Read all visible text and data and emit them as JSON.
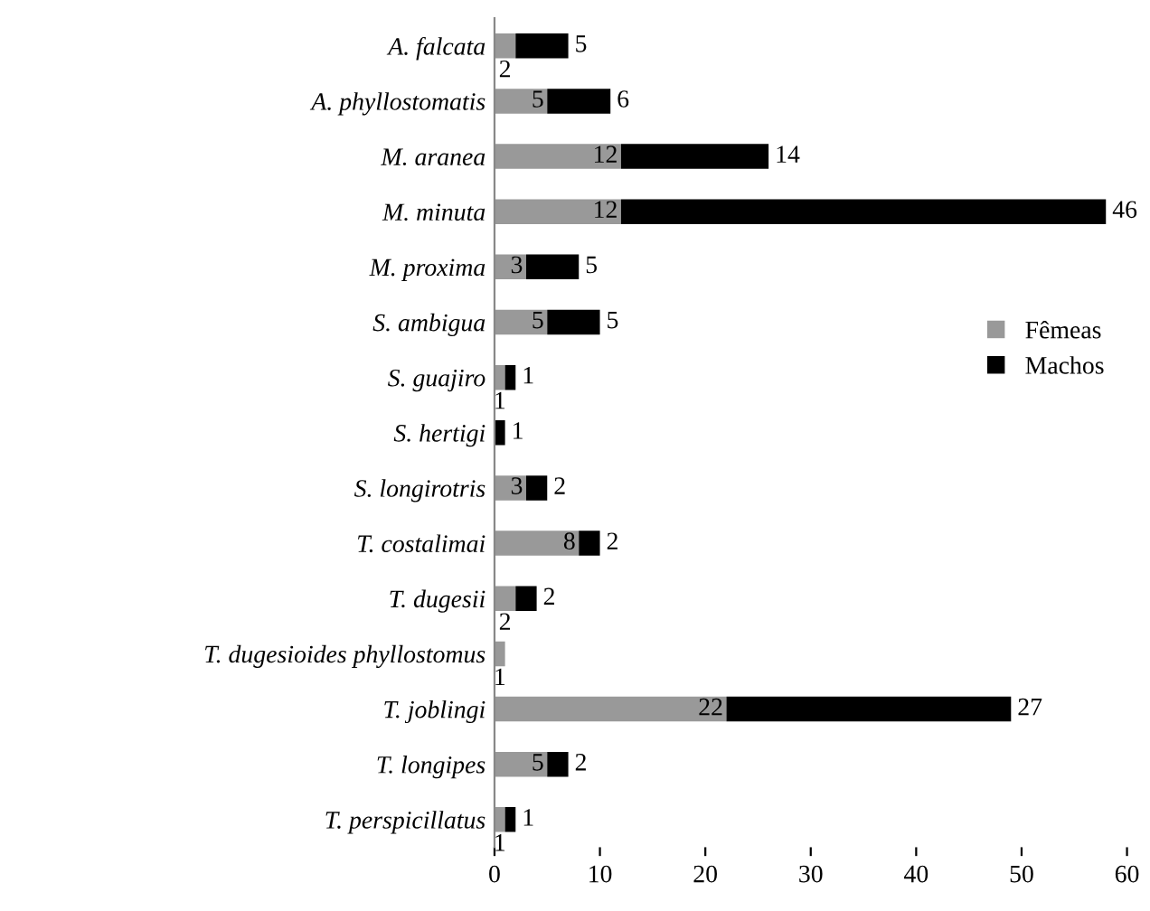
{
  "chart_data": {
    "type": "bar",
    "orientation": "horizontal",
    "stacked": true,
    "data_labels": true,
    "legend": "right",
    "grid": false,
    "categories": [
      "A. falcata",
      "A. phyllostomatis",
      "M. aranea",
      "M. minuta",
      "M. proxima",
      "S. ambigua",
      "S. guajiro",
      "S. hertigi",
      "S. longirotris",
      "T. costalimai",
      "T. dugesii",
      "T. dugesioides phyllostomus",
      "T. joblingi",
      "T. longipes",
      "T. perspicillatus"
    ],
    "series": [
      {
        "name": "Fêmeas",
        "color": "#999999",
        "values": [
          2,
          5,
          12,
          12,
          3,
          5,
          1,
          null,
          3,
          8,
          2,
          1,
          22,
          5,
          1
        ]
      },
      {
        "name": "Machos",
        "color": "#000000",
        "values": [
          5,
          6,
          14,
          46,
          5,
          5,
          1,
          1,
          2,
          2,
          2,
          null,
          27,
          2,
          1
        ]
      }
    ],
    "xlim": [
      0,
      60
    ],
    "xticks": [
      0,
      10,
      20,
      30,
      40,
      50,
      60
    ]
  }
}
